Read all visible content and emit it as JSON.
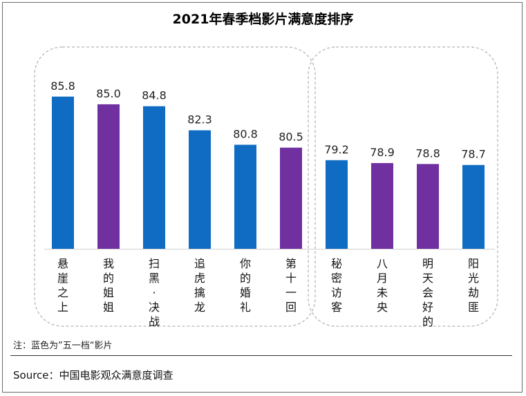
{
  "chart_data": {
    "type": "bar",
    "title": "2021年春季档影片满意度排序",
    "categories": [
      "悬崖之上",
      "我的姐姐",
      "扫黑·决战",
      "追虎擒龙",
      "你的婚礼",
      "第十一回",
      "秘密访客",
      "八月未央",
      "明天会好的",
      "阳光劫匪"
    ],
    "values": [
      85.8,
      85.0,
      84.8,
      82.3,
      80.8,
      80.5,
      79.2,
      78.9,
      78.8,
      78.7
    ],
    "value_labels": [
      "85.8",
      "85.0",
      "84.8",
      "82.3",
      "80.8",
      "80.5",
      "79.2",
      "78.9",
      "78.8",
      "78.7"
    ],
    "is_wuyi": [
      true,
      false,
      true,
      true,
      true,
      false,
      true,
      false,
      false,
      true
    ],
    "ylim": [
      70,
      86.5
    ],
    "colors": {
      "blue": "#0F6CC2",
      "purple": "#7030A0"
    },
    "groups": [
      {
        "start": 0,
        "end": 5
      },
      {
        "start": 6,
        "end": 9
      }
    ]
  },
  "note": "注：蓝色为”五一档“影片",
  "source": "Source：中国电影观众满意度调查"
}
